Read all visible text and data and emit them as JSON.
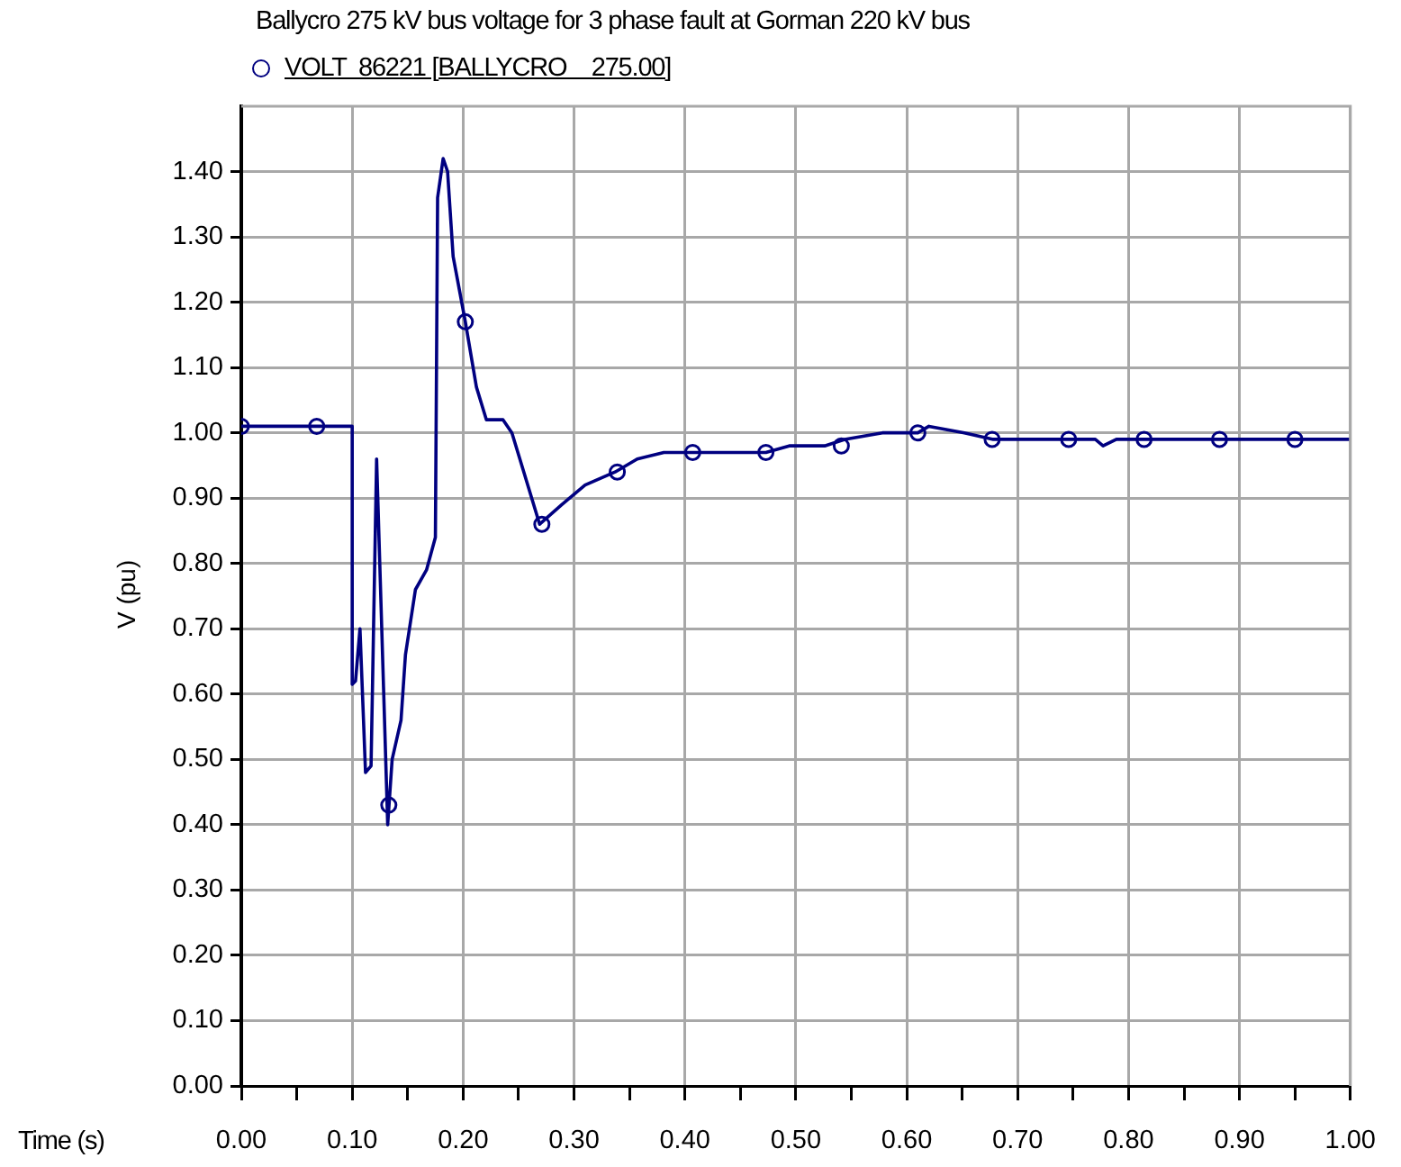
{
  "chart_data": {
    "type": "line",
    "title": "Ballycro 275 kV bus voltage for 3 phase fault at Gorman 220 kV bus",
    "xlabel": "Time (s)",
    "ylabel": "V (pu)",
    "xlim": [
      0,
      1
    ],
    "xticks": [
      {
        "value": 0,
        "label": "0.00"
      },
      {
        "value": 0.05,
        "label": null
      },
      {
        "value": 0.1,
        "label": "0.10"
      },
      {
        "value": 0.15,
        "label": null
      },
      {
        "value": 0.2,
        "label": "0.20"
      },
      {
        "value": 0.25,
        "label": null
      },
      {
        "value": 0.3,
        "label": "0.30"
      },
      {
        "value": 0.35,
        "label": null
      },
      {
        "value": 0.4,
        "label": "0.40"
      },
      {
        "value": 0.45,
        "label": null
      },
      {
        "value": 0.5,
        "label": "0.50"
      },
      {
        "value": 0.55,
        "label": null
      },
      {
        "value": 0.6,
        "label": "0.60"
      },
      {
        "value": 0.65,
        "label": null
      },
      {
        "value": 0.7,
        "label": "0.70"
      },
      {
        "value": 0.75,
        "label": null
      },
      {
        "value": 0.8,
        "label": "0.80"
      },
      {
        "value": 0.85,
        "label": null
      },
      {
        "value": 0.9,
        "label": "0.90"
      },
      {
        "value": 0.95,
        "label": null
      },
      {
        "value": 1,
        "label": "1.00"
      }
    ],
    "ylim": [
      0,
      1.5
    ],
    "yticks": [
      {
        "value": 0,
        "label": "0.00"
      },
      {
        "value": 0.1,
        "label": "0.10"
      },
      {
        "value": 0.2,
        "label": "0.20"
      },
      {
        "value": 0.3,
        "label": "0.30"
      },
      {
        "value": 0.4,
        "label": "0.40"
      },
      {
        "value": 0.5,
        "label": "0.50"
      },
      {
        "value": 0.6,
        "label": "0.60"
      },
      {
        "value": 0.7,
        "label": "0.70"
      },
      {
        "value": 0.8,
        "label": "0.80"
      },
      {
        "value": 0.9,
        "label": "0.90"
      },
      {
        "value": 1,
        "label": "1.00"
      },
      {
        "value": 1.1,
        "label": "1.10"
      },
      {
        "value": 1.2,
        "label": "1.20"
      },
      {
        "value": 1.3,
        "label": "1.30"
      },
      {
        "value": 1.4,
        "label": "1.40"
      }
    ],
    "grid": true,
    "legend": "top left",
    "line_style": "solid",
    "marker": "circle",
    "series": [
      {
        "name": "VOLT  86221 [BALLYCRO    275.00]",
        "type": "line",
        "marker": "none",
        "color": "#000080",
        "x": [
          0,
          0.1,
          0.1,
          0.103,
          0.107,
          0.112,
          0.117,
          0.122,
          0.132,
          0.136,
          0.144,
          0.148,
          0.157,
          0.167,
          0.175,
          0.177,
          0.182,
          0.186,
          0.191,
          0.202,
          0.212,
          0.221,
          0.236,
          0.244,
          0.269,
          0.289,
          0.31,
          0.337,
          0.357,
          0.381,
          0.42,
          0.473,
          0.494,
          0.526,
          0.544,
          0.578,
          0.61,
          0.62,
          0.652,
          0.678,
          0.77,
          0.777,
          0.789,
          1
        ],
        "values": [
          1.01,
          1.01,
          0.615,
          0.62,
          0.7,
          0.48,
          0.49,
          0.96,
          0.4,
          0.5,
          0.56,
          0.66,
          0.76,
          0.79,
          0.84,
          1.36,
          1.42,
          1.4,
          1.27,
          1.17,
          1.07,
          1.02,
          1.02,
          1,
          0.86,
          0.89,
          0.92,
          0.94,
          0.96,
          0.97,
          0.97,
          0.97,
          0.98,
          0.98,
          0.99,
          1,
          1,
          1.01,
          1,
          0.99,
          0.99,
          0.98,
          0.99,
          0.99
        ]
      },
      {
        "type": "scatter",
        "color": "#000080",
        "x": [
          0,
          0.068,
          0.133,
          0.202,
          0.271,
          0.339,
          0.407,
          0.473,
          0.541,
          0.61,
          0.677,
          0.746,
          0.814,
          0.882,
          0.95
        ],
        "values": [
          1.01,
          1.01,
          0.43,
          1.17,
          0.86,
          0.94,
          0.97,
          0.97,
          0.98,
          1,
          0.99,
          0.99,
          0.99,
          0.99,
          0.99
        ]
      }
    ]
  }
}
